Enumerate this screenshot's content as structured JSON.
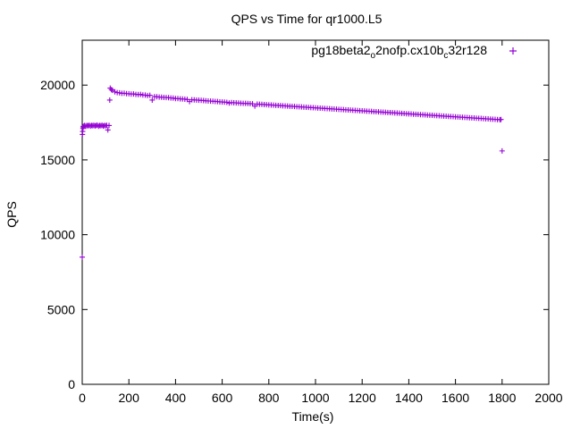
{
  "chart_data": {
    "type": "scatter",
    "title": "QPS vs Time for qr1000.L5",
    "xlabel": "Time(s)",
    "ylabel": "QPS",
    "xlim": [
      0,
      2000
    ],
    "ylim": [
      0,
      23000
    ],
    "x_ticks": [
      0,
      200,
      400,
      600,
      800,
      1000,
      1200,
      1400,
      1600,
      1800,
      2000
    ],
    "y_ticks": [
      0,
      5000,
      10000,
      15000,
      20000
    ],
    "grid": false,
    "legend_position": "top-right",
    "marker": "plus",
    "series": [
      {
        "legend": {
          "base": "pg18beta2",
          "sub1": "o",
          "mid1": "2nofp.cx10b",
          "sub2": "c",
          "mid2": "32r128"
        },
        "color": "#9400d3",
        "points": [
          [
            0,
            8500
          ],
          [
            1,
            16700
          ],
          [
            2,
            16900
          ],
          [
            3,
            17100
          ],
          [
            4,
            17200
          ],
          [
            5,
            17250
          ],
          [
            10,
            17300
          ],
          [
            15,
            17250
          ],
          [
            20,
            17300
          ],
          [
            25,
            17280
          ],
          [
            30,
            17320
          ],
          [
            35,
            17260
          ],
          [
            40,
            17300
          ],
          [
            45,
            17290
          ],
          [
            50,
            17310
          ],
          [
            55,
            17270
          ],
          [
            60,
            17300
          ],
          [
            65,
            17320
          ],
          [
            70,
            17250
          ],
          [
            75,
            17300
          ],
          [
            80,
            17280
          ],
          [
            85,
            17320
          ],
          [
            90,
            17260
          ],
          [
            95,
            17300
          ],
          [
            100,
            17280
          ],
          [
            105,
            17310
          ],
          [
            110,
            17000
          ],
          [
            115,
            17300
          ],
          [
            118,
            19000
          ],
          [
            120,
            19800
          ],
          [
            125,
            19700
          ],
          [
            130,
            19650
          ],
          [
            140,
            19550
          ],
          [
            150,
            19500
          ],
          [
            160,
            19480
          ],
          [
            170,
            19450
          ],
          [
            180,
            19460
          ],
          [
            190,
            19430
          ],
          [
            200,
            19420
          ],
          [
            210,
            19400
          ],
          [
            220,
            19410
          ],
          [
            230,
            19380
          ],
          [
            240,
            19370
          ],
          [
            250,
            19380
          ],
          [
            260,
            19340
          ],
          [
            270,
            19330
          ],
          [
            280,
            19300
          ],
          [
            290,
            19320
          ],
          [
            300,
            19000
          ],
          [
            310,
            19230
          ],
          [
            320,
            19220
          ],
          [
            330,
            19200
          ],
          [
            340,
            19190
          ],
          [
            350,
            19180
          ],
          [
            360,
            19170
          ],
          [
            370,
            19160
          ],
          [
            380,
            19140
          ],
          [
            390,
            19130
          ],
          [
            400,
            19100
          ],
          [
            410,
            19100
          ],
          [
            420,
            19080
          ],
          [
            430,
            19070
          ],
          [
            440,
            19060
          ],
          [
            450,
            19040
          ],
          [
            460,
            18900
          ],
          [
            470,
            19020
          ],
          [
            480,
            19010
          ],
          [
            490,
            19000
          ],
          [
            500,
            18990
          ],
          [
            510,
            18980
          ],
          [
            520,
            18970
          ],
          [
            530,
            18950
          ],
          [
            540,
            18940
          ],
          [
            550,
            18930
          ],
          [
            560,
            18920
          ],
          [
            570,
            18910
          ],
          [
            580,
            18900
          ],
          [
            590,
            18880
          ],
          [
            600,
            18870
          ],
          [
            610,
            18860
          ],
          [
            620,
            18850
          ],
          [
            630,
            18800
          ],
          [
            640,
            18830
          ],
          [
            650,
            18820
          ],
          [
            660,
            18810
          ],
          [
            670,
            18800
          ],
          [
            680,
            18790
          ],
          [
            690,
            18780
          ],
          [
            700,
            18780
          ],
          [
            710,
            18770
          ],
          [
            720,
            18760
          ],
          [
            730,
            18750
          ],
          [
            740,
            18600
          ],
          [
            750,
            18730
          ],
          [
            760,
            18720
          ],
          [
            770,
            18710
          ],
          [
            780,
            18700
          ],
          [
            790,
            18690
          ],
          [
            800,
            18680
          ],
          [
            810,
            18670
          ],
          [
            820,
            18660
          ],
          [
            830,
            18650
          ],
          [
            840,
            18640
          ],
          [
            850,
            18630
          ],
          [
            860,
            18620
          ],
          [
            870,
            18610
          ],
          [
            880,
            18600
          ],
          [
            890,
            18590
          ],
          [
            900,
            18580
          ],
          [
            910,
            18570
          ],
          [
            920,
            18560
          ],
          [
            930,
            18550
          ],
          [
            940,
            18540
          ],
          [
            950,
            18530
          ],
          [
            960,
            18520
          ],
          [
            970,
            18510
          ],
          [
            980,
            18500
          ],
          [
            990,
            18490
          ],
          [
            1000,
            18480
          ],
          [
            1010,
            18470
          ],
          [
            1020,
            18460
          ],
          [
            1030,
            18450
          ],
          [
            1040,
            18440
          ],
          [
            1050,
            18430
          ],
          [
            1060,
            18420
          ],
          [
            1070,
            18410
          ],
          [
            1080,
            18400
          ],
          [
            1090,
            18390
          ],
          [
            1100,
            18380
          ],
          [
            1110,
            18370
          ],
          [
            1120,
            18360
          ],
          [
            1130,
            18350
          ],
          [
            1140,
            18340
          ],
          [
            1150,
            18330
          ],
          [
            1160,
            18320
          ],
          [
            1170,
            18310
          ],
          [
            1180,
            18300
          ],
          [
            1190,
            18290
          ],
          [
            1200,
            18280
          ],
          [
            1210,
            18270
          ],
          [
            1220,
            18260
          ],
          [
            1230,
            18250
          ],
          [
            1240,
            18240
          ],
          [
            1250,
            18230
          ],
          [
            1260,
            18220
          ],
          [
            1270,
            18210
          ],
          [
            1280,
            18200
          ],
          [
            1290,
            18190
          ],
          [
            1300,
            18180
          ],
          [
            1310,
            18170
          ],
          [
            1320,
            18160
          ],
          [
            1330,
            18150
          ],
          [
            1340,
            18140
          ],
          [
            1350,
            18130
          ],
          [
            1360,
            18120
          ],
          [
            1370,
            18110
          ],
          [
            1380,
            18100
          ],
          [
            1390,
            18090
          ],
          [
            1400,
            18080
          ],
          [
            1410,
            18070
          ],
          [
            1420,
            18060
          ],
          [
            1430,
            18050
          ],
          [
            1440,
            18040
          ],
          [
            1450,
            18030
          ],
          [
            1460,
            18020
          ],
          [
            1470,
            18010
          ],
          [
            1480,
            18000
          ],
          [
            1490,
            17990
          ],
          [
            1500,
            17980
          ],
          [
            1510,
            17970
          ],
          [
            1520,
            17960
          ],
          [
            1530,
            17950
          ],
          [
            1540,
            17940
          ],
          [
            1550,
            17930
          ],
          [
            1560,
            17920
          ],
          [
            1570,
            17910
          ],
          [
            1580,
            17900
          ],
          [
            1590,
            17890
          ],
          [
            1600,
            17880
          ],
          [
            1610,
            17870
          ],
          [
            1620,
            17860
          ],
          [
            1630,
            17850
          ],
          [
            1640,
            17840
          ],
          [
            1650,
            17830
          ],
          [
            1660,
            17820
          ],
          [
            1670,
            17810
          ],
          [
            1680,
            17800
          ],
          [
            1690,
            17790
          ],
          [
            1700,
            17780
          ],
          [
            1710,
            17770
          ],
          [
            1720,
            17760
          ],
          [
            1730,
            17750
          ],
          [
            1740,
            17740
          ],
          [
            1750,
            17730
          ],
          [
            1760,
            17720
          ],
          [
            1770,
            17710
          ],
          [
            1780,
            17700
          ],
          [
            1790,
            17690
          ],
          [
            1795,
            17700
          ],
          [
            1800,
            15600
          ]
        ]
      }
    ]
  }
}
